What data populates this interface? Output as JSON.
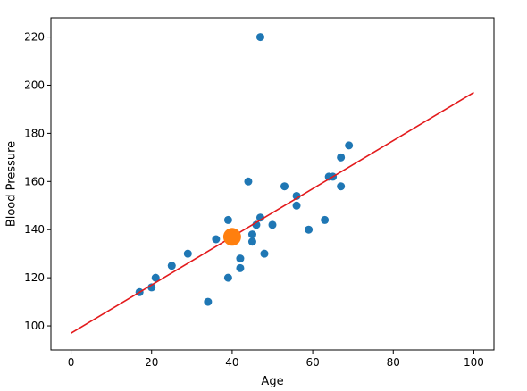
{
  "chart_data": {
    "type": "scatter",
    "title": "",
    "xlabel": "Age",
    "ylabel": "Blood Pressure",
    "xlim": [
      -5,
      105
    ],
    "ylim": [
      90,
      228
    ],
    "grid": false,
    "xticks": [
      0,
      20,
      40,
      60,
      80,
      100
    ],
    "yticks": [
      100,
      120,
      140,
      160,
      180,
      200,
      220
    ],
    "colors": {
      "points": "#1f77b4",
      "highlight": "#ff7f0e",
      "fit_line": "#e31a1c",
      "axes": "#000000"
    },
    "series": [
      {
        "type": "scatter",
        "points": [
          [
            17,
            114
          ],
          [
            20,
            116
          ],
          [
            21,
            120
          ],
          [
            25,
            125
          ],
          [
            29,
            130
          ],
          [
            34,
            110
          ],
          [
            36,
            136
          ],
          [
            39,
            120
          ],
          [
            39,
            144
          ],
          [
            42,
            128
          ],
          [
            42,
            124
          ],
          [
            44,
            160
          ],
          [
            45,
            138
          ],
          [
            45,
            135
          ],
          [
            46,
            142
          ],
          [
            47,
            145
          ],
          [
            47,
            220
          ],
          [
            48,
            130
          ],
          [
            50,
            142
          ],
          [
            53,
            158
          ],
          [
            56,
            154
          ],
          [
            56,
            150
          ],
          [
            59,
            140
          ],
          [
            63,
            144
          ],
          [
            64,
            162
          ],
          [
            65,
            162
          ],
          [
            67,
            170
          ],
          [
            67,
            158
          ],
          [
            69,
            175
          ]
        ]
      },
      {
        "type": "highlight",
        "points": [
          [
            40,
            137
          ]
        ]
      },
      {
        "type": "line",
        "points": [
          [
            0,
            97
          ],
          [
            100,
            197
          ]
        ]
      }
    ]
  }
}
